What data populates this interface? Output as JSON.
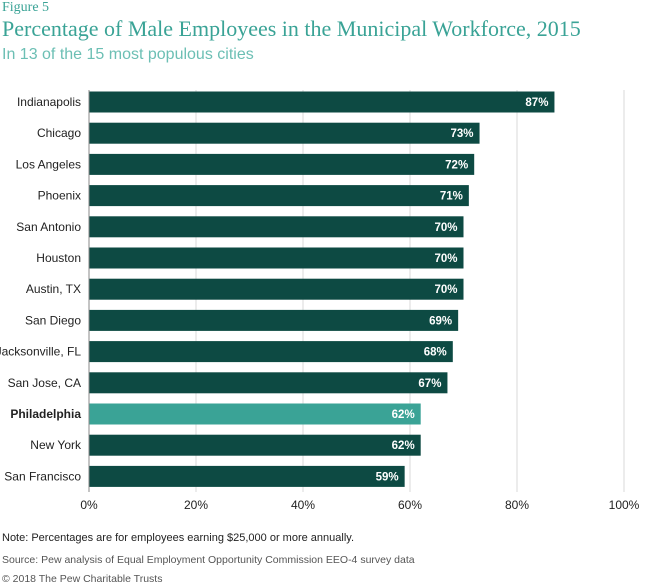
{
  "header": {
    "figure_label": "Figure 5",
    "title": "Percentage of Male Employees in the Municipal Workforce, 2015",
    "subtitle": "In 13 of the 15 most populous cities"
  },
  "footer": {
    "note": "Note: Percentages are for employees earning $25,000 or more annually.",
    "source": "Source: Pew analysis of Equal Employment Opportunity Commission EEO-4 survey data",
    "copyright": "© 2018 The Pew Charitable Trusts"
  },
  "colors": {
    "bar": "#0d4a43",
    "highlight": "#3aa396",
    "grid": "#d9d9d9",
    "title": "#3aa396"
  },
  "chart_data": {
    "type": "bar",
    "orientation": "horizontal",
    "title": "Percentage of Male Employees in the Municipal Workforce, 2015",
    "subtitle": "In 13 of the 15 most populous cities",
    "categories": [
      "Indianapolis",
      "Chicago",
      "Los Angeles",
      "Phoenix",
      "San Antonio",
      "Houston",
      "Austin, TX",
      "San Diego",
      "Jacksonville, FL",
      "San Jose, CA",
      "Philadelphia",
      "New York",
      "San Francisco"
    ],
    "values": [
      87,
      73,
      72,
      71,
      70,
      70,
      70,
      69,
      68,
      67,
      62,
      62,
      59
    ],
    "value_labels": [
      "87%",
      "73%",
      "72%",
      "71%",
      "70%",
      "70%",
      "70%",
      "69%",
      "68%",
      "67%",
      "62%",
      "62%",
      "59%"
    ],
    "highlight_category": "Philadelphia",
    "xlim": [
      0,
      100
    ],
    "xticks": [
      0,
      20,
      40,
      60,
      80,
      100
    ],
    "xtick_labels": [
      "0%",
      "20%",
      "40%",
      "60%",
      "80%",
      "100%"
    ],
    "grid": true,
    "legend": "none"
  }
}
